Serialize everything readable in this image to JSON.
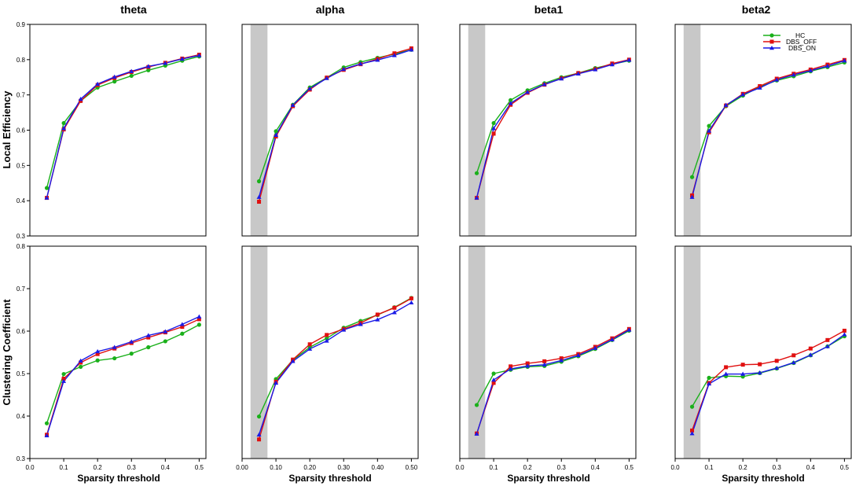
{
  "figure": {
    "band_titles": [
      "theta",
      "alpha",
      "beta1",
      "beta2"
    ],
    "row_ylabels": [
      "Local Efficiency",
      "Clustering Coefficient"
    ],
    "xlabel": "Sparsity threshold",
    "legend": [
      "HC",
      "DBS_OFF",
      "DBS_ON"
    ],
    "colors": {
      "HC": "#1ab01a",
      "DBS_OFF": "#e01010",
      "DBS_ON": "#1a1ae6",
      "shade": "#c8c8c8"
    },
    "markers": {
      "HC": "circle",
      "DBS_OFF": "square",
      "DBS_ON": "triangle"
    }
  },
  "chart_data": [
    {
      "type": "line",
      "row": 0,
      "col": 0,
      "title": "theta",
      "ylabel": "Local Efficiency",
      "xlabel": "",
      "xlim": [
        0.0,
        0.52
      ],
      "ylim": [
        0.3,
        0.9
      ],
      "yticks": [
        "0.3",
        "0.4",
        "0.5",
        "0.6",
        "0.7",
        "0.8",
        "0.9"
      ],
      "xticks": [],
      "shade": null,
      "x": [
        0.05,
        0.1,
        0.15,
        0.2,
        0.25,
        0.3,
        0.35,
        0.4,
        0.45,
        0.5
      ],
      "series": [
        {
          "name": "HC",
          "values": [
            0.436,
            0.62,
            0.683,
            0.721,
            0.738,
            0.754,
            0.77,
            0.783,
            0.797,
            0.809
          ]
        },
        {
          "name": "DBS_OFF",
          "values": [
            0.408,
            0.602,
            0.683,
            0.728,
            0.748,
            0.765,
            0.779,
            0.791,
            0.803,
            0.814
          ]
        },
        {
          "name": "DBS_ON",
          "values": [
            0.408,
            0.605,
            0.688,
            0.731,
            0.751,
            0.767,
            0.781,
            0.79,
            0.802,
            0.812
          ]
        }
      ]
    },
    {
      "type": "line",
      "row": 0,
      "col": 1,
      "title": "alpha",
      "ylabel": "",
      "xlabel": "",
      "xlim": [
        0.0,
        0.52
      ],
      "ylim": [
        0.3,
        0.9
      ],
      "yticks": [],
      "xticks": [],
      "shade": [
        0.025,
        0.075
      ],
      "x": [
        0.05,
        0.1,
        0.15,
        0.2,
        0.25,
        0.3,
        0.35,
        0.4,
        0.45,
        0.5
      ],
      "series": [
        {
          "name": "HC",
          "values": [
            0.455,
            0.597,
            0.672,
            0.721,
            0.749,
            0.778,
            0.793,
            0.805,
            0.816,
            0.828
          ]
        },
        {
          "name": "DBS_OFF",
          "values": [
            0.397,
            0.582,
            0.668,
            0.715,
            0.749,
            0.771,
            0.787,
            0.802,
            0.818,
            0.832
          ]
        },
        {
          "name": "DBS_ON",
          "values": [
            0.41,
            0.586,
            0.671,
            0.718,
            0.747,
            0.773,
            0.788,
            0.799,
            0.812,
            0.828
          ]
        }
      ]
    },
    {
      "type": "line",
      "row": 0,
      "col": 2,
      "title": "beta1",
      "ylabel": "",
      "xlabel": "",
      "xlim": [
        0.0,
        0.52
      ],
      "ylim": [
        0.3,
        0.9
      ],
      "yticks": [],
      "xticks": [],
      "shade": [
        0.025,
        0.075
      ],
      "x": [
        0.05,
        0.1,
        0.15,
        0.2,
        0.25,
        0.3,
        0.35,
        0.4,
        0.45,
        0.5
      ],
      "series": [
        {
          "name": "HC",
          "values": [
            0.478,
            0.62,
            0.685,
            0.713,
            0.733,
            0.75,
            0.762,
            0.776,
            0.787,
            0.797
          ]
        },
        {
          "name": "DBS_OFF",
          "values": [
            0.408,
            0.59,
            0.672,
            0.706,
            0.729,
            0.747,
            0.762,
            0.773,
            0.789,
            0.8
          ]
        },
        {
          "name": "DBS_ON",
          "values": [
            0.408,
            0.605,
            0.676,
            0.708,
            0.73,
            0.746,
            0.76,
            0.772,
            0.786,
            0.799
          ]
        }
      ]
    },
    {
      "type": "line",
      "row": 0,
      "col": 3,
      "title": "beta2",
      "ylabel": "",
      "xlabel": "",
      "xlim": [
        0.0,
        0.52
      ],
      "ylim": [
        0.3,
        0.9
      ],
      "yticks": [],
      "xticks": [],
      "shade": [
        0.025,
        0.075
      ],
      "x": [
        0.05,
        0.1,
        0.15,
        0.2,
        0.25,
        0.3,
        0.35,
        0.4,
        0.45,
        0.5
      ],
      "series": [
        {
          "name": "HC",
          "values": [
            0.467,
            0.612,
            0.668,
            0.698,
            0.723,
            0.741,
            0.753,
            0.767,
            0.779,
            0.792
          ]
        },
        {
          "name": "DBS_OFF",
          "values": [
            0.415,
            0.594,
            0.67,
            0.703,
            0.725,
            0.746,
            0.76,
            0.772,
            0.786,
            0.799
          ]
        },
        {
          "name": "DBS_ON",
          "values": [
            0.41,
            0.598,
            0.671,
            0.701,
            0.72,
            0.743,
            0.757,
            0.769,
            0.782,
            0.797
          ]
        }
      ]
    },
    {
      "type": "line",
      "row": 1,
      "col": 0,
      "title": "",
      "ylabel": "Clustering Coefficient",
      "xlabel": "Sparsity threshold",
      "xlim": [
        0.0,
        0.52
      ],
      "ylim": [
        0.3,
        0.8
      ],
      "yticks": [
        "0.3",
        "0.4",
        "0.5",
        "0.6",
        "0.7",
        "0.8"
      ],
      "xticks": [
        "0.0",
        "0.1",
        "0.2",
        "0.3",
        "0.4",
        "0.5"
      ],
      "shade": null,
      "x": [
        0.05,
        0.1,
        0.15,
        0.2,
        0.25,
        0.3,
        0.35,
        0.4,
        0.45,
        0.5
      ],
      "series": [
        {
          "name": "HC",
          "values": [
            0.383,
            0.499,
            0.516,
            0.531,
            0.536,
            0.547,
            0.562,
            0.576,
            0.594,
            0.615
          ]
        },
        {
          "name": "DBS_OFF",
          "values": [
            0.356,
            0.488,
            0.526,
            0.546,
            0.559,
            0.572,
            0.585,
            0.597,
            0.61,
            0.628
          ]
        },
        {
          "name": "DBS_ON",
          "values": [
            0.354,
            0.482,
            0.53,
            0.552,
            0.562,
            0.575,
            0.59,
            0.599,
            0.616,
            0.634
          ]
        }
      ]
    },
    {
      "type": "line",
      "row": 1,
      "col": 1,
      "title": "",
      "ylabel": "",
      "xlabel": "Sparsity threshold",
      "xlim": [
        0.0,
        0.52
      ],
      "ylim": [
        0.3,
        0.8
      ],
      "yticks": [],
      "xticks": [
        "0.00",
        "0.10",
        "0.20",
        "0.30",
        "0.40",
        "0.50"
      ],
      "shade": [
        0.025,
        0.075
      ],
      "x": [
        0.05,
        0.1,
        0.15,
        0.2,
        0.25,
        0.3,
        0.35,
        0.4,
        0.45,
        0.5
      ],
      "series": [
        {
          "name": "HC",
          "values": [
            0.399,
            0.487,
            0.532,
            0.562,
            0.583,
            0.608,
            0.624,
            0.638,
            0.656,
            0.678
          ]
        },
        {
          "name": "DBS_OFF",
          "values": [
            0.345,
            0.481,
            0.533,
            0.569,
            0.591,
            0.605,
            0.619,
            0.639,
            0.655,
            0.677
          ]
        },
        {
          "name": "DBS_ON",
          "values": [
            0.356,
            0.478,
            0.529,
            0.558,
            0.577,
            0.603,
            0.616,
            0.627,
            0.644,
            0.667
          ]
        }
      ]
    },
    {
      "type": "line",
      "row": 1,
      "col": 2,
      "title": "",
      "ylabel": "",
      "xlabel": "Sparsity threshold",
      "xlim": [
        0.0,
        0.52
      ],
      "ylim": [
        0.3,
        0.8
      ],
      "yticks": [],
      "xticks": [
        "0.0",
        "0.1",
        "0.2",
        "0.3",
        "0.4",
        "0.5"
      ],
      "shade": [
        0.025,
        0.075
      ],
      "x": [
        0.05,
        0.1,
        0.15,
        0.2,
        0.25,
        0.3,
        0.35,
        0.4,
        0.45,
        0.5
      ],
      "series": [
        {
          "name": "HC",
          "values": [
            0.426,
            0.5,
            0.509,
            0.516,
            0.518,
            0.528,
            0.541,
            0.558,
            0.579,
            0.601
          ]
        },
        {
          "name": "DBS_OFF",
          "values": [
            0.359,
            0.478,
            0.517,
            0.524,
            0.529,
            0.536,
            0.546,
            0.563,
            0.583,
            0.605
          ]
        },
        {
          "name": "DBS_ON",
          "values": [
            0.358,
            0.485,
            0.511,
            0.518,
            0.521,
            0.531,
            0.543,
            0.56,
            0.58,
            0.603
          ]
        }
      ]
    },
    {
      "type": "line",
      "row": 1,
      "col": 3,
      "title": "",
      "ylabel": "",
      "xlabel": "Sparsity threshold",
      "xlim": [
        0.0,
        0.52
      ],
      "ylim": [
        0.3,
        0.8
      ],
      "yticks": [],
      "xticks": [
        "0.0",
        "0.1",
        "0.2",
        "0.3",
        "0.4",
        "0.5"
      ],
      "shade": [
        0.025,
        0.075
      ],
      "x": [
        0.05,
        0.1,
        0.15,
        0.2,
        0.25,
        0.3,
        0.35,
        0.4,
        0.45,
        0.5
      ],
      "series": [
        {
          "name": "HC",
          "values": [
            0.422,
            0.49,
            0.494,
            0.493,
            0.501,
            0.512,
            0.525,
            0.543,
            0.564,
            0.588
          ]
        },
        {
          "name": "DBS_OFF",
          "values": [
            0.366,
            0.478,
            0.515,
            0.521,
            0.522,
            0.53,
            0.543,
            0.559,
            0.579,
            0.601
          ]
        },
        {
          "name": "DBS_ON",
          "values": [
            0.359,
            0.476,
            0.499,
            0.499,
            0.502,
            0.513,
            0.526,
            0.544,
            0.564,
            0.592
          ]
        }
      ]
    }
  ]
}
